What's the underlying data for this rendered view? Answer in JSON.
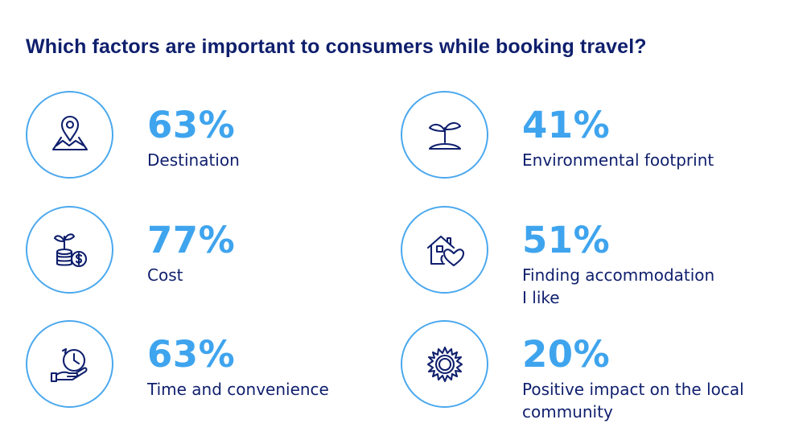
{
  "title": "Which factors are important to consumers while booking travel?",
  "accent_color": "#3fa4ee",
  "text_color": "#0f1f6d",
  "factors": [
    {
      "percent": "63%",
      "label": "Destination",
      "icon": "map-pin-icon"
    },
    {
      "percent": "41%",
      "label": "Environmental footprint",
      "icon": "sprout-island-icon"
    },
    {
      "percent": "77%",
      "label": "Cost",
      "icon": "coins-plant-icon"
    },
    {
      "percent": "51%",
      "label_line1": "Finding accommodation",
      "label_line2": "I like",
      "icon": "house-heart-icon"
    },
    {
      "percent": "63%",
      "label": "Time and convenience",
      "icon": "clock-hand-icon"
    },
    {
      "percent": "20%",
      "label_line1": "Positive impact on the local",
      "label_line2": "community",
      "icon": "sun-icon"
    }
  ]
}
